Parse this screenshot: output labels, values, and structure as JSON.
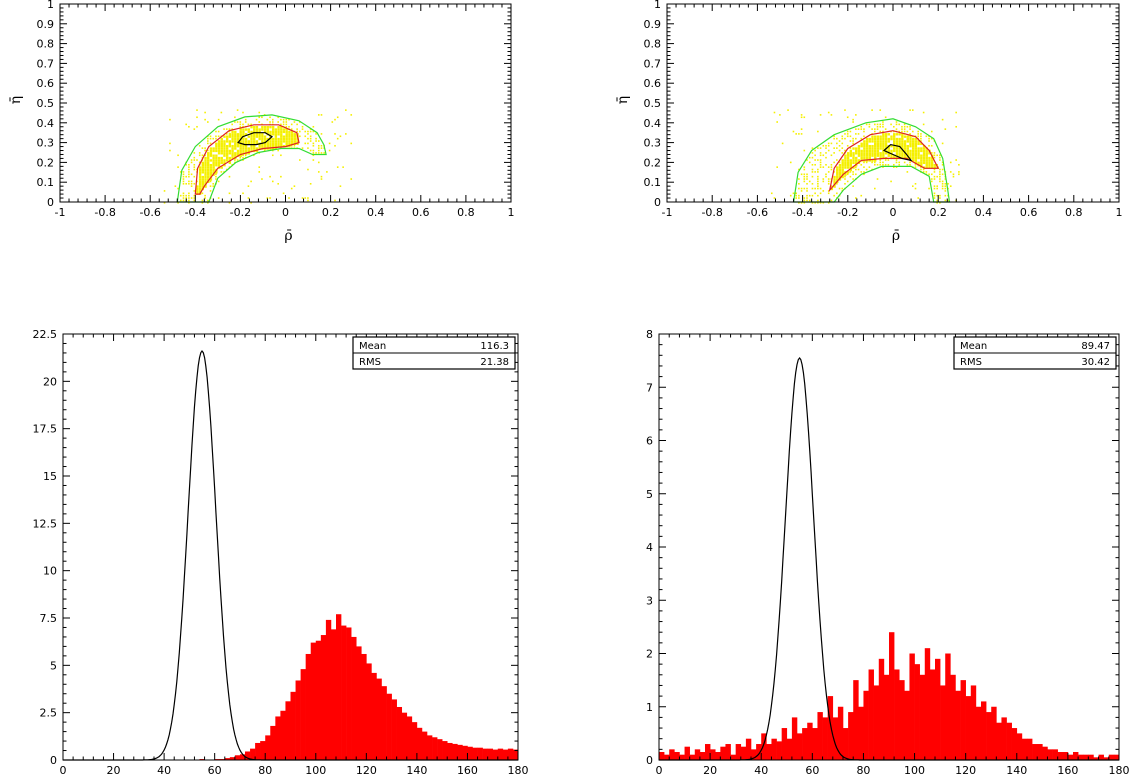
{
  "chart_data": [
    {
      "type": "heatmap",
      "xlabel": "ρ̄",
      "ylabel": "η̄",
      "xlim": [
        -1,
        1
      ],
      "ylim": [
        0,
        1
      ],
      "x_ticks": [
        -1,
        -0.8,
        -0.6,
        -0.4,
        -0.2,
        0,
        0.2,
        0.4,
        0.6,
        0.8,
        1
      ],
      "y_ticks": [
        0,
        0.1,
        0.2,
        0.3,
        0.4,
        0.5,
        0.6,
        0.7,
        0.8,
        0.9,
        1
      ],
      "fill_color": "#f5f000",
      "contours": [
        {
          "level": "outer",
          "color": "#33dd33",
          "points": [
            [
              -0.48,
              0.0
            ],
            [
              -0.46,
              0.16
            ],
            [
              -0.4,
              0.28
            ],
            [
              -0.3,
              0.38
            ],
            [
              -0.18,
              0.43
            ],
            [
              -0.06,
              0.44
            ],
            [
              0.06,
              0.41
            ],
            [
              0.14,
              0.35
            ],
            [
              0.17,
              0.29
            ],
            [
              0.18,
              0.24
            ],
            [
              0.12,
              0.24
            ],
            [
              0.06,
              0.27
            ],
            [
              -0.02,
              0.27
            ],
            [
              -0.12,
              0.25
            ],
            [
              -0.22,
              0.2
            ],
            [
              -0.3,
              0.12
            ],
            [
              -0.34,
              0.0
            ]
          ]
        },
        {
          "level": "middle",
          "color": "#dd2222",
          "points": [
            [
              -0.4,
              0.04
            ],
            [
              -0.39,
              0.17
            ],
            [
              -0.34,
              0.28
            ],
            [
              -0.25,
              0.36
            ],
            [
              -0.14,
              0.39
            ],
            [
              -0.03,
              0.39
            ],
            [
              0.05,
              0.35
            ],
            [
              0.06,
              0.3
            ],
            [
              0.0,
              0.28
            ],
            [
              -0.1,
              0.27
            ],
            [
              -0.2,
              0.24
            ],
            [
              -0.3,
              0.17
            ],
            [
              -0.36,
              0.08
            ],
            [
              -0.38,
              0.04
            ]
          ]
        },
        {
          "level": "inner",
          "color": "#000000",
          "points": [
            [
              -0.21,
              0.3
            ],
            [
              -0.19,
              0.33
            ],
            [
              -0.14,
              0.35
            ],
            [
              -0.09,
              0.35
            ],
            [
              -0.06,
              0.33
            ],
            [
              -0.09,
              0.3
            ],
            [
              -0.13,
              0.29
            ],
            [
              -0.18,
              0.29
            ]
          ]
        }
      ]
    },
    {
      "type": "heatmap",
      "xlabel": "ρ̄",
      "ylabel": "η̄",
      "xlim": [
        -1,
        1
      ],
      "ylim": [
        0,
        1
      ],
      "x_ticks": [
        -1,
        -0.8,
        -0.6,
        -0.4,
        -0.2,
        0,
        0.2,
        0.4,
        0.6,
        0.8,
        1
      ],
      "y_ticks": [
        0,
        0.1,
        0.2,
        0.3,
        0.4,
        0.5,
        0.6,
        0.7,
        0.8,
        0.9,
        1
      ],
      "fill_color": "#f5f000",
      "contours": [
        {
          "level": "outer",
          "color": "#33dd33",
          "points": [
            [
              -0.44,
              0.0
            ],
            [
              -0.42,
              0.15
            ],
            [
              -0.36,
              0.26
            ],
            [
              -0.26,
              0.34
            ],
            [
              -0.12,
              0.4
            ],
            [
              0.0,
              0.42
            ],
            [
              0.1,
              0.38
            ],
            [
              0.18,
              0.32
            ],
            [
              0.22,
              0.22
            ],
            [
              0.24,
              0.08
            ],
            [
              0.25,
              0.0
            ],
            [
              0.18,
              0.0
            ],
            [
              0.16,
              0.13
            ],
            [
              0.08,
              0.18
            ],
            [
              -0.05,
              0.18
            ],
            [
              -0.14,
              0.14
            ],
            [
              -0.22,
              0.06
            ],
            [
              -0.26,
              0.0
            ]
          ]
        },
        {
          "level": "middle",
          "color": "#dd2222",
          "points": [
            [
              -0.28,
              0.06
            ],
            [
              -0.26,
              0.17
            ],
            [
              -0.2,
              0.27
            ],
            [
              -0.1,
              0.34
            ],
            [
              0.0,
              0.36
            ],
            [
              0.1,
              0.33
            ],
            [
              0.16,
              0.26
            ],
            [
              0.2,
              0.17
            ],
            [
              0.14,
              0.17
            ],
            [
              0.06,
              0.22
            ],
            [
              -0.04,
              0.22
            ],
            [
              -0.14,
              0.21
            ],
            [
              -0.22,
              0.14
            ]
          ]
        },
        {
          "level": "inner",
          "color": "#000000",
          "points": [
            [
              -0.04,
              0.26
            ],
            [
              -0.01,
              0.29
            ],
            [
              0.03,
              0.28
            ],
            [
              0.06,
              0.24
            ],
            [
              0.08,
              0.21
            ],
            [
              0.04,
              0.22
            ],
            [
              0.0,
              0.24
            ]
          ]
        }
      ]
    },
    {
      "type": "bar",
      "xlim": [
        0,
        180
      ],
      "ylim": [
        0,
        22.5
      ],
      "x_ticks": [
        0,
        20,
        40,
        60,
        80,
        100,
        120,
        140,
        160,
        180
      ],
      "y_ticks": [
        0,
        2.5,
        5,
        7.5,
        10,
        12.5,
        15,
        17.5,
        20,
        22.5
      ],
      "bin_width": 2,
      "bin_start": 0,
      "values": [
        0,
        0,
        0,
        0,
        0,
        0,
        0,
        0,
        0,
        0,
        0,
        0,
        0,
        0,
        0,
        0,
        0,
        0,
        0,
        0,
        0,
        0,
        0,
        0,
        0,
        0,
        0,
        0.05,
        0,
        0,
        0.05,
        0.05,
        0.1,
        0.15,
        0.25,
        0.3,
        0.45,
        0.6,
        0.9,
        1.0,
        1.3,
        1.8,
        2.3,
        2.6,
        3.1,
        3.6,
        4.2,
        4.8,
        5.6,
        6.2,
        6.3,
        6.6,
        7.4,
        6.9,
        7.7,
        7.1,
        7.0,
        6.5,
        6.0,
        5.6,
        5.1,
        4.6,
        4.3,
        3.9,
        3.5,
        3.2,
        2.8,
        2.5,
        2.3,
        2.0,
        1.7,
        1.5,
        1.3,
        1.2,
        1.1,
        1.0,
        0.9,
        0.85,
        0.8,
        0.75,
        0.7,
        0.65,
        0.65,
        0.6,
        0.6,
        0.55,
        0.6,
        0.55,
        0.6,
        0.55
      ],
      "bar_color": "#ff0000",
      "curve": {
        "type": "gaussian",
        "mean": 55,
        "sigma": 5.5,
        "peak": 21.6,
        "color": "#000000"
      },
      "stats": {
        "mean_label": "Mean",
        "mean_value": "116.3",
        "rms_label": "RMS",
        "rms_value": "21.38"
      }
    },
    {
      "type": "bar",
      "xlim": [
        0,
        180
      ],
      "ylim": [
        0,
        8
      ],
      "x_ticks": [
        0,
        20,
        40,
        60,
        80,
        100,
        120,
        140,
        160,
        180
      ],
      "y_ticks": [
        0,
        1,
        2,
        3,
        4,
        5,
        6,
        7,
        8
      ],
      "bin_width": 2,
      "bin_start": 0,
      "values": [
        0.15,
        0.1,
        0.2,
        0.15,
        0.1,
        0.25,
        0.1,
        0.2,
        0.15,
        0.3,
        0.2,
        0.15,
        0.25,
        0.3,
        0.1,
        0.3,
        0.25,
        0.4,
        0.2,
        0.3,
        0.5,
        0.3,
        0.4,
        0.35,
        0.6,
        0.4,
        0.8,
        0.5,
        0.6,
        0.7,
        0.6,
        0.9,
        0.8,
        1.2,
        0.8,
        1.0,
        0.6,
        0.9,
        1.5,
        1.0,
        1.3,
        1.7,
        1.4,
        1.9,
        1.6,
        2.4,
        1.7,
        1.5,
        1.3,
        2.0,
        1.8,
        1.6,
        2.1,
        1.7,
        1.9,
        1.4,
        2.0,
        1.6,
        1.3,
        1.5,
        1.2,
        1.4,
        1.0,
        1.1,
        0.9,
        1.0,
        0.7,
        0.8,
        0.7,
        0.6,
        0.5,
        0.4,
        0.4,
        0.3,
        0.3,
        0.25,
        0.2,
        0.2,
        0.15,
        0.15,
        0.1,
        0.15,
        0.1,
        0.1,
        0.1,
        0.05,
        0.1,
        0.05,
        0.1,
        0.1
      ],
      "bar_color": "#ff0000",
      "curve": {
        "type": "gaussian",
        "mean": 55,
        "sigma": 5.5,
        "peak": 7.55,
        "color": "#000000"
      },
      "stats": {
        "mean_label": "Mean",
        "mean_value": "89.47",
        "rms_label": "RMS",
        "rms_value": "30.42"
      }
    }
  ]
}
